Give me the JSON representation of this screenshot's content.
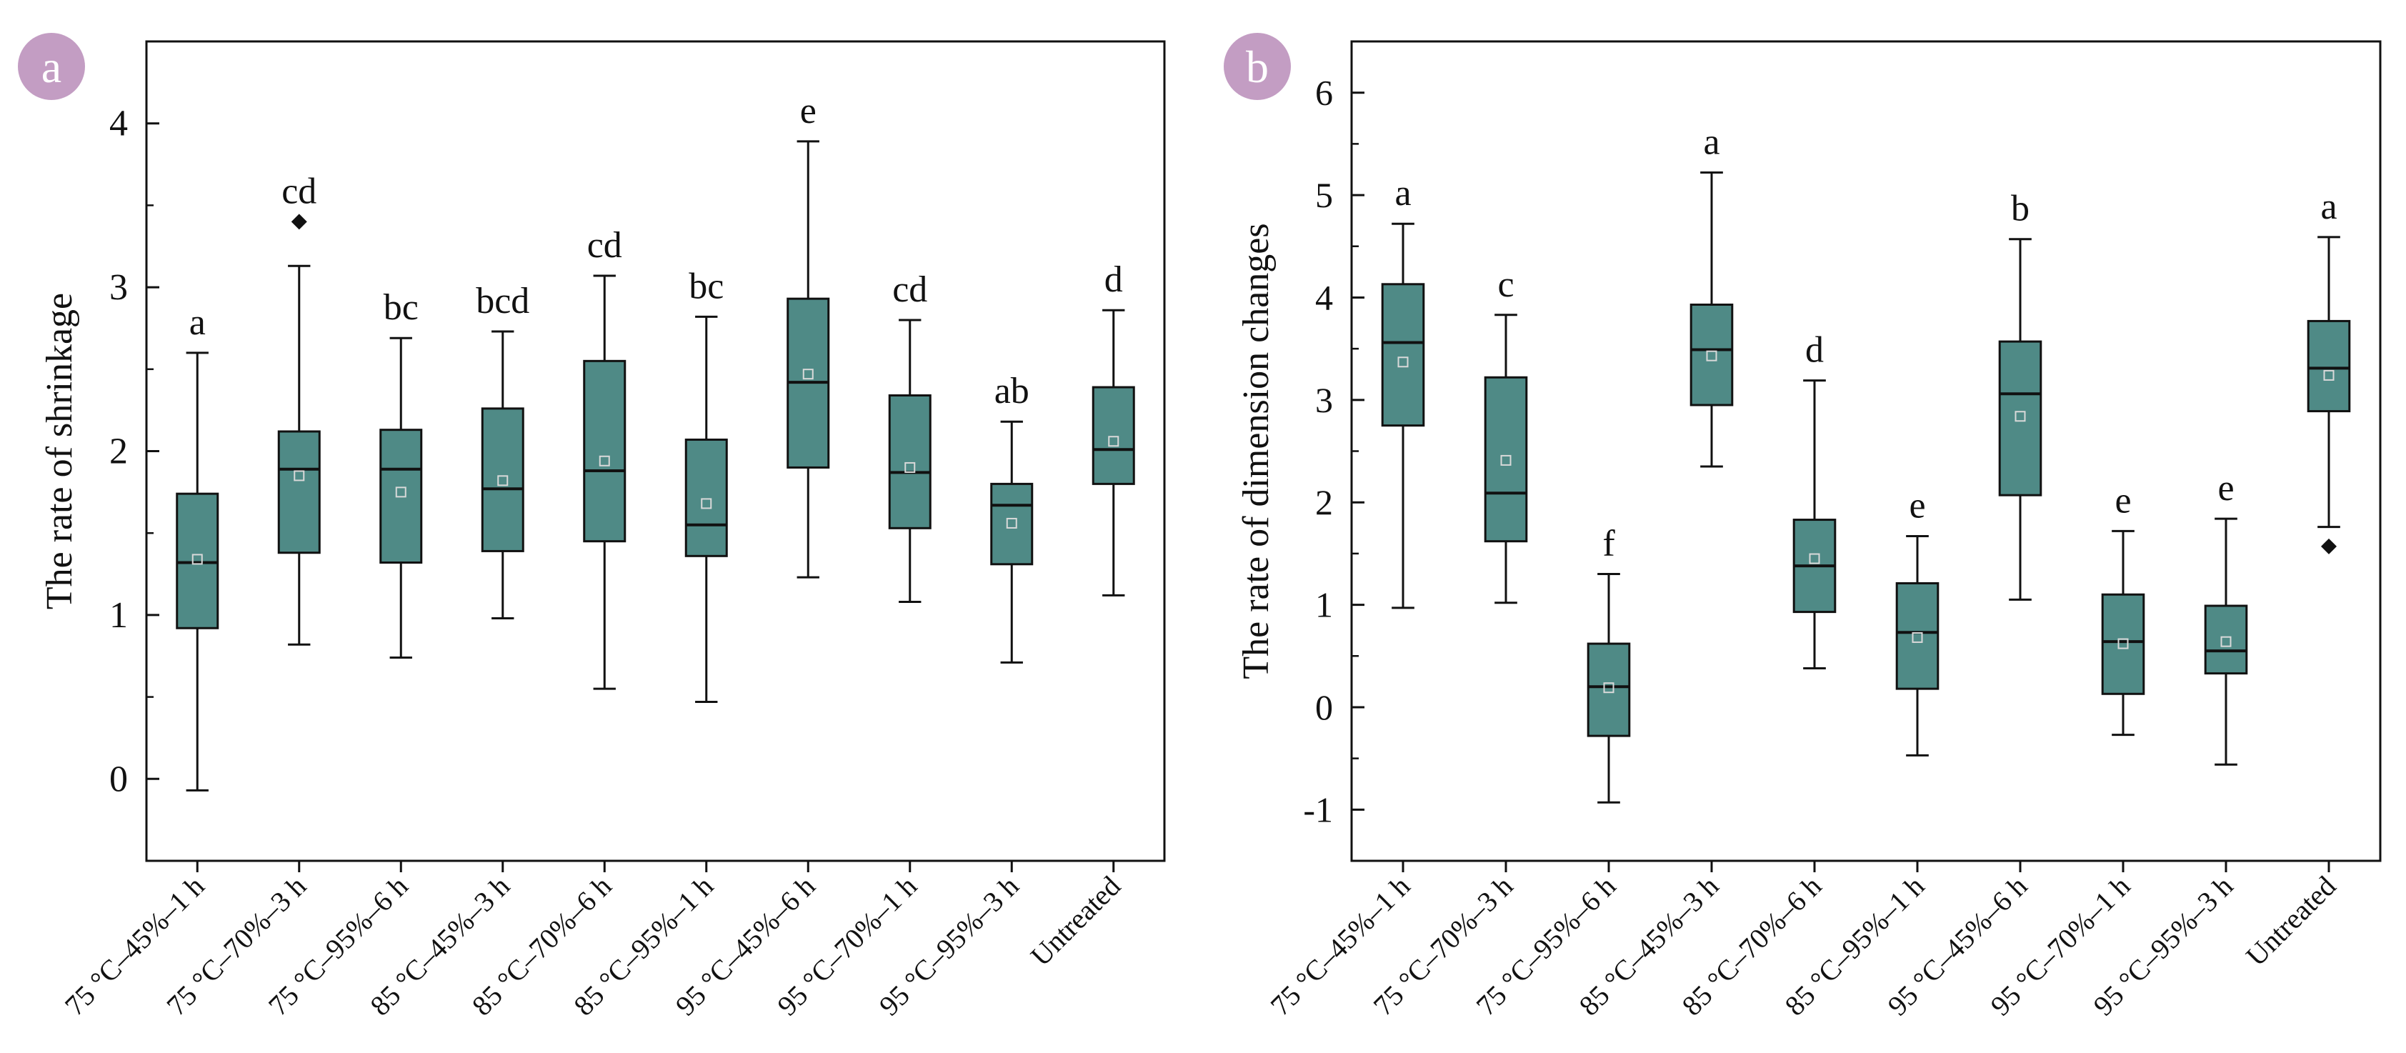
{
  "colors": {
    "box_fill": "#4f8a86",
    "box_stroke": "#111111",
    "badge_fill": "#c39dc3",
    "badge_text": "#ffffff",
    "axis": "#111111"
  },
  "chart_data": [
    {
      "panel_label": "a",
      "type": "box",
      "ylabel": "The rate of shrinkage",
      "xlabel": "",
      "ylim": [
        -0.5,
        4.5
      ],
      "yticks": [
        0,
        1,
        2,
        3,
        4
      ],
      "categories": [
        "75 °C–45%–1 h",
        "75 °C–70%–3 h",
        "75 °C–95%–6 h",
        "85 °C–45%–3 h",
        "85 °C–70%–6 h",
        "85 °C–95%–1 h",
        "95 °C–45%–6 h",
        "95 °C–70%–1 h",
        "95 °C–95%–3 h",
        "Untreated"
      ],
      "boxes": [
        {
          "min": -0.07,
          "q1": 0.92,
          "median": 1.32,
          "q3": 1.74,
          "max": 2.6,
          "mean": 1.34,
          "outliers": [],
          "letter": "a"
        },
        {
          "min": 0.82,
          "q1": 1.38,
          "median": 1.89,
          "q3": 2.12,
          "max": 3.13,
          "mean": 1.85,
          "outliers": [
            3.4
          ],
          "letter": "cd"
        },
        {
          "min": 0.74,
          "q1": 1.32,
          "median": 1.89,
          "q3": 2.13,
          "max": 2.69,
          "mean": 1.75,
          "outliers": [],
          "letter": "bc"
        },
        {
          "min": 0.98,
          "q1": 1.39,
          "median": 1.77,
          "q3": 2.26,
          "max": 2.73,
          "mean": 1.82,
          "outliers": [],
          "letter": "bcd"
        },
        {
          "min": 0.55,
          "q1": 1.45,
          "median": 1.88,
          "q3": 2.55,
          "max": 3.07,
          "mean": 1.94,
          "outliers": [],
          "letter": "cd"
        },
        {
          "min": 0.47,
          "q1": 1.36,
          "median": 1.55,
          "q3": 2.07,
          "max": 2.82,
          "mean": 1.68,
          "outliers": [],
          "letter": "bc"
        },
        {
          "min": 1.23,
          "q1": 1.9,
          "median": 2.42,
          "q3": 2.93,
          "max": 3.89,
          "mean": 2.47,
          "outliers": [],
          "letter": "e"
        },
        {
          "min": 1.08,
          "q1": 1.53,
          "median": 1.87,
          "q3": 2.34,
          "max": 2.8,
          "mean": 1.9,
          "outliers": [],
          "letter": "cd"
        },
        {
          "min": 0.71,
          "q1": 1.31,
          "median": 1.67,
          "q3": 1.8,
          "max": 2.18,
          "mean": 1.56,
          "outliers": [],
          "letter": "ab"
        },
        {
          "min": 1.12,
          "q1": 1.8,
          "median": 2.01,
          "q3": 2.39,
          "max": 2.86,
          "mean": 2.06,
          "outliers": [],
          "letter": "d"
        }
      ]
    },
    {
      "panel_label": "b",
      "type": "box",
      "ylabel": "The rate of dimension changes",
      "xlabel": "",
      "ylim": [
        -1.5,
        6.5
      ],
      "yticks": [
        -1,
        0,
        1,
        2,
        3,
        4,
        5,
        6
      ],
      "categories": [
        "75 °C–45%–1 h",
        "75 °C–70%–3 h",
        "75 °C–95%–6 h",
        "85 °C–45%–3 h",
        "85 °C–70%–6 h",
        "85 °C–95%–1 h",
        "95 °C–45%–6 h",
        "95 °C–70%–1 h",
        "95 °C–95%–3 h",
        "Untreated"
      ],
      "boxes": [
        {
          "min": 0.97,
          "q1": 2.75,
          "median": 3.56,
          "q3": 4.13,
          "max": 4.72,
          "mean": 3.37,
          "outliers": [],
          "letter": "a"
        },
        {
          "min": 1.02,
          "q1": 1.62,
          "median": 2.09,
          "q3": 3.22,
          "max": 3.83,
          "mean": 2.41,
          "outliers": [],
          "letter": "c"
        },
        {
          "min": -0.93,
          "q1": -0.28,
          "median": 0.2,
          "q3": 0.62,
          "max": 1.3,
          "mean": 0.19,
          "outliers": [],
          "letter": "f"
        },
        {
          "min": 2.35,
          "q1": 2.95,
          "median": 3.49,
          "q3": 3.93,
          "max": 5.22,
          "mean": 3.43,
          "outliers": [],
          "letter": "a"
        },
        {
          "min": 0.38,
          "q1": 0.93,
          "median": 1.38,
          "q3": 1.83,
          "max": 3.19,
          "mean": 1.45,
          "outliers": [],
          "letter": "d"
        },
        {
          "min": -0.47,
          "q1": 0.18,
          "median": 0.73,
          "q3": 1.21,
          "max": 1.67,
          "mean": 0.68,
          "outliers": [],
          "letter": "e"
        },
        {
          "min": 1.05,
          "q1": 2.07,
          "median": 3.06,
          "q3": 3.57,
          "max": 4.57,
          "mean": 2.84,
          "outliers": [],
          "letter": "b"
        },
        {
          "min": -0.27,
          "q1": 0.13,
          "median": 0.64,
          "q3": 1.1,
          "max": 1.72,
          "mean": 0.62,
          "outliers": [],
          "letter": "e"
        },
        {
          "min": -0.56,
          "q1": 0.33,
          "median": 0.55,
          "q3": 0.99,
          "max": 1.84,
          "mean": 0.64,
          "outliers": [],
          "letter": "e"
        },
        {
          "min": 1.76,
          "q1": 2.89,
          "median": 3.31,
          "q3": 3.77,
          "max": 4.59,
          "mean": 3.24,
          "outliers": [
            1.57
          ],
          "letter": "a"
        }
      ]
    }
  ]
}
